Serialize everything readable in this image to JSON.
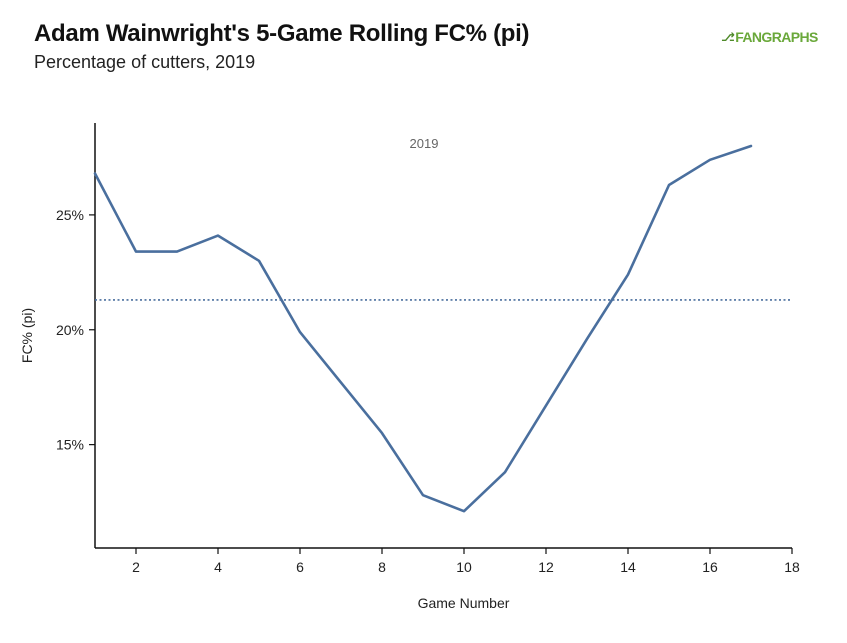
{
  "header": {
    "title": "Adam Wainwright's 5-Game Rolling FC% (pi)",
    "subtitle": "Percentage of cutters, 2019",
    "logo_text": "FANGRAPHS"
  },
  "colors": {
    "line": "#4a6f9e",
    "reference": "#4a6f9e",
    "logo": "#6aa83a"
  },
  "chart_data": {
    "type": "line",
    "title": "Adam Wainwright's 5-Game Rolling FC% (pi)",
    "subtitle": "Percentage of cutters, 2019",
    "xlabel": "Game Number",
    "ylabel": "FC% (pi)",
    "xlim": [
      1,
      18
    ],
    "ylim": [
      10.5,
      29
    ],
    "x_ticks": [
      2,
      4,
      6,
      8,
      10,
      12,
      14,
      16,
      18
    ],
    "y_ticks": [
      15,
      20,
      25
    ],
    "y_tick_format": "percent",
    "annotation": "2019",
    "reference_line": 21.3,
    "grid": false,
    "series": [
      {
        "x": [
          1,
          2,
          3,
          4,
          5,
          6,
          7,
          8,
          9,
          10,
          11,
          12,
          13,
          14,
          15,
          16,
          17
        ],
        "values": [
          26.8,
          23.4,
          23.4,
          24.1,
          23.0,
          19.9,
          17.7,
          15.5,
          12.8,
          12.1,
          13.8,
          16.7,
          19.6,
          22.4,
          26.3,
          27.4,
          28.0
        ]
      }
    ]
  }
}
